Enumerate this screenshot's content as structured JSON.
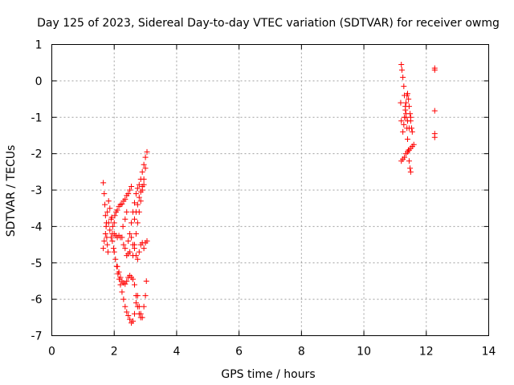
{
  "chart_data": {
    "type": "scatter",
    "title": "Day 125 of 2023, Sidereal Day-to-day VTEC variation (SDTVAR) for receiver owmg",
    "xlabel": "GPS time / hours",
    "ylabel": "SDTVAR / TECUs",
    "xlim": [
      0,
      14
    ],
    "ylim": [
      -7,
      1
    ],
    "xticks": [
      0,
      2,
      4,
      6,
      8,
      10,
      12,
      14
    ],
    "yticks": [
      1,
      0,
      -1,
      -2,
      -3,
      -4,
      -5,
      -6,
      -7
    ],
    "grid": true,
    "marker": "+",
    "color": "#ff0000",
    "series": [
      {
        "name": "SDTVAR",
        "points": [
          [
            1.65,
            -2.8
          ],
          [
            1.68,
            -3.1
          ],
          [
            1.7,
            -3.4
          ],
          [
            1.72,
            -3.7
          ],
          [
            1.74,
            -4.0
          ],
          [
            1.76,
            -4.3
          ],
          [
            1.78,
            -4.5
          ],
          [
            1.8,
            -4.7
          ],
          [
            1.65,
            -4.6
          ],
          [
            1.68,
            -4.4
          ],
          [
            1.72,
            -4.2
          ],
          [
            1.75,
            -3.9
          ],
          [
            1.78,
            -3.6
          ],
          [
            1.82,
            -3.3
          ],
          [
            1.86,
            -3.5
          ],
          [
            1.9,
            -3.8
          ],
          [
            1.94,
            -4.2
          ],
          [
            1.98,
            -4.6
          ],
          [
            1.82,
            -3.9
          ],
          [
            1.86,
            -4.1
          ],
          [
            1.9,
            -4.3
          ],
          [
            1.94,
            -4.4
          ],
          [
            2.0,
            -4.7
          ],
          [
            2.04,
            -4.9
          ],
          [
            2.08,
            -5.1
          ],
          [
            2.12,
            -5.3
          ],
          [
            2.16,
            -5.45
          ],
          [
            2.2,
            -5.6
          ],
          [
            2.25,
            -5.8
          ],
          [
            2.3,
            -6.0
          ],
          [
            2.35,
            -6.2
          ],
          [
            2.4,
            -6.35
          ],
          [
            2.45,
            -6.45
          ],
          [
            2.5,
            -6.55
          ],
          [
            2.55,
            -6.65
          ],
          [
            2.6,
            -6.6
          ],
          [
            2.65,
            -6.4
          ],
          [
            2.7,
            -6.1
          ],
          [
            2.75,
            -5.9
          ],
          [
            2.8,
            -6.2
          ],
          [
            2.85,
            -6.4
          ],
          [
            2.9,
            -6.5
          ],
          [
            2.95,
            -6.2
          ],
          [
            3.0,
            -5.9
          ],
          [
            3.03,
            -5.5
          ],
          [
            2.0,
            -4.2
          ],
          [
            2.05,
            -4.25
          ],
          [
            2.1,
            -4.3
          ],
          [
            2.15,
            -4.25
          ],
          [
            2.2,
            -4.3
          ],
          [
            2.25,
            -4.3
          ],
          [
            2.3,
            -4.5
          ],
          [
            2.35,
            -4.6
          ],
          [
            2.4,
            -4.8
          ],
          [
            2.45,
            -4.75
          ],
          [
            2.5,
            -4.7
          ],
          [
            2.02,
            -3.7
          ],
          [
            2.06,
            -3.6
          ],
          [
            2.1,
            -3.55
          ],
          [
            2.15,
            -3.45
          ],
          [
            2.2,
            -3.4
          ],
          [
            2.25,
            -3.38
          ],
          [
            2.3,
            -3.3
          ],
          [
            2.35,
            -3.25
          ],
          [
            2.4,
            -3.15
          ],
          [
            2.45,
            -3.1
          ],
          [
            2.5,
            -3.0
          ],
          [
            2.55,
            -2.9
          ],
          [
            2.1,
            -5.1
          ],
          [
            2.15,
            -5.25
          ],
          [
            2.2,
            -5.4
          ],
          [
            2.25,
            -5.5
          ],
          [
            2.3,
            -5.55
          ],
          [
            2.35,
            -5.58
          ],
          [
            2.4,
            -5.5
          ],
          [
            2.45,
            -5.4
          ],
          [
            2.5,
            -5.35
          ],
          [
            2.55,
            -5.4
          ],
          [
            2.6,
            -5.45
          ],
          [
            2.65,
            -5.6
          ],
          [
            2.7,
            -5.9
          ],
          [
            2.75,
            -6.2
          ],
          [
            2.8,
            -6.4
          ],
          [
            2.85,
            -6.5
          ],
          [
            2.45,
            -4.4
          ],
          [
            2.5,
            -4.2
          ],
          [
            2.55,
            -3.9
          ],
          [
            2.6,
            -3.6
          ],
          [
            2.65,
            -3.35
          ],
          [
            2.7,
            -3.1
          ],
          [
            2.75,
            -2.95
          ],
          [
            2.8,
            -2.85
          ],
          [
            2.85,
            -2.7
          ],
          [
            2.9,
            -2.5
          ],
          [
            2.95,
            -2.3
          ],
          [
            3.0,
            -2.1
          ],
          [
            3.05,
            -1.95
          ],
          [
            2.55,
            -4.3
          ],
          [
            2.6,
            -4.5
          ],
          [
            2.65,
            -4.6
          ],
          [
            2.7,
            -4.8
          ],
          [
            2.75,
            -4.9
          ],
          [
            2.8,
            -4.7
          ],
          [
            2.85,
            -4.5
          ],
          [
            2.9,
            -4.45
          ],
          [
            2.95,
            -4.6
          ],
          [
            3.0,
            -4.45
          ],
          [
            3.05,
            -4.4
          ],
          [
            2.6,
            -4.8
          ],
          [
            2.65,
            -4.5
          ],
          [
            2.7,
            -4.2
          ],
          [
            2.75,
            -3.9
          ],
          [
            2.8,
            -3.6
          ],
          [
            2.85,
            -3.3
          ],
          [
            2.9,
            -3.0
          ],
          [
            2.95,
            -2.7
          ],
          [
            3.0,
            -2.4
          ],
          [
            2.65,
            -3.8
          ],
          [
            2.7,
            -3.6
          ],
          [
            2.75,
            -3.4
          ],
          [
            2.8,
            -3.2
          ],
          [
            2.85,
            -3.05
          ],
          [
            2.9,
            -2.9
          ],
          [
            2.95,
            -2.85
          ],
          [
            1.95,
            -4.0
          ],
          [
            2.0,
            -3.9
          ],
          [
            1.92,
            -3.75
          ],
          [
            2.28,
            -4.0
          ],
          [
            2.35,
            -3.8
          ],
          [
            2.4,
            -3.6
          ],
          [
            11.2,
            0.45
          ],
          [
            11.22,
            0.3
          ],
          [
            11.25,
            0.1
          ],
          [
            11.28,
            -0.15
          ],
          [
            11.3,
            -0.4
          ],
          [
            11.33,
            -0.7
          ],
          [
            11.35,
            -1.0
          ],
          [
            11.38,
            -1.3
          ],
          [
            11.4,
            -1.6
          ],
          [
            11.43,
            -1.9
          ],
          [
            11.45,
            -2.2
          ],
          [
            11.48,
            -2.4
          ],
          [
            11.5,
            -2.5
          ],
          [
            11.25,
            -1.4
          ],
          [
            11.28,
            -1.2
          ],
          [
            11.3,
            -1.0
          ],
          [
            11.33,
            -0.8
          ],
          [
            11.35,
            -0.6
          ],
          [
            11.38,
            -0.4
          ],
          [
            11.4,
            -0.35
          ],
          [
            11.43,
            -0.5
          ],
          [
            11.45,
            -0.7
          ],
          [
            11.48,
            -0.9
          ],
          [
            11.5,
            -1.1
          ],
          [
            11.53,
            -1.3
          ],
          [
            11.55,
            -1.4
          ],
          [
            11.2,
            -2.2
          ],
          [
            11.25,
            -2.15
          ],
          [
            11.3,
            -2.1
          ],
          [
            11.35,
            -2.0
          ],
          [
            11.4,
            -1.95
          ],
          [
            11.45,
            -1.9
          ],
          [
            11.5,
            -1.85
          ],
          [
            11.55,
            -1.8
          ],
          [
            11.6,
            -1.75
          ],
          [
            11.35,
            -0.9
          ],
          [
            11.4,
            -1.1
          ],
          [
            11.45,
            -1.3
          ],
          [
            11.5,
            -1.0
          ],
          [
            11.2,
            -1.1
          ],
          [
            11.18,
            -0.6
          ],
          [
            12.27,
            0.35
          ],
          [
            12.27,
            0.3
          ],
          [
            12.27,
            -0.82
          ],
          [
            12.27,
            -1.45
          ],
          [
            12.27,
            -1.55
          ]
        ]
      }
    ]
  }
}
